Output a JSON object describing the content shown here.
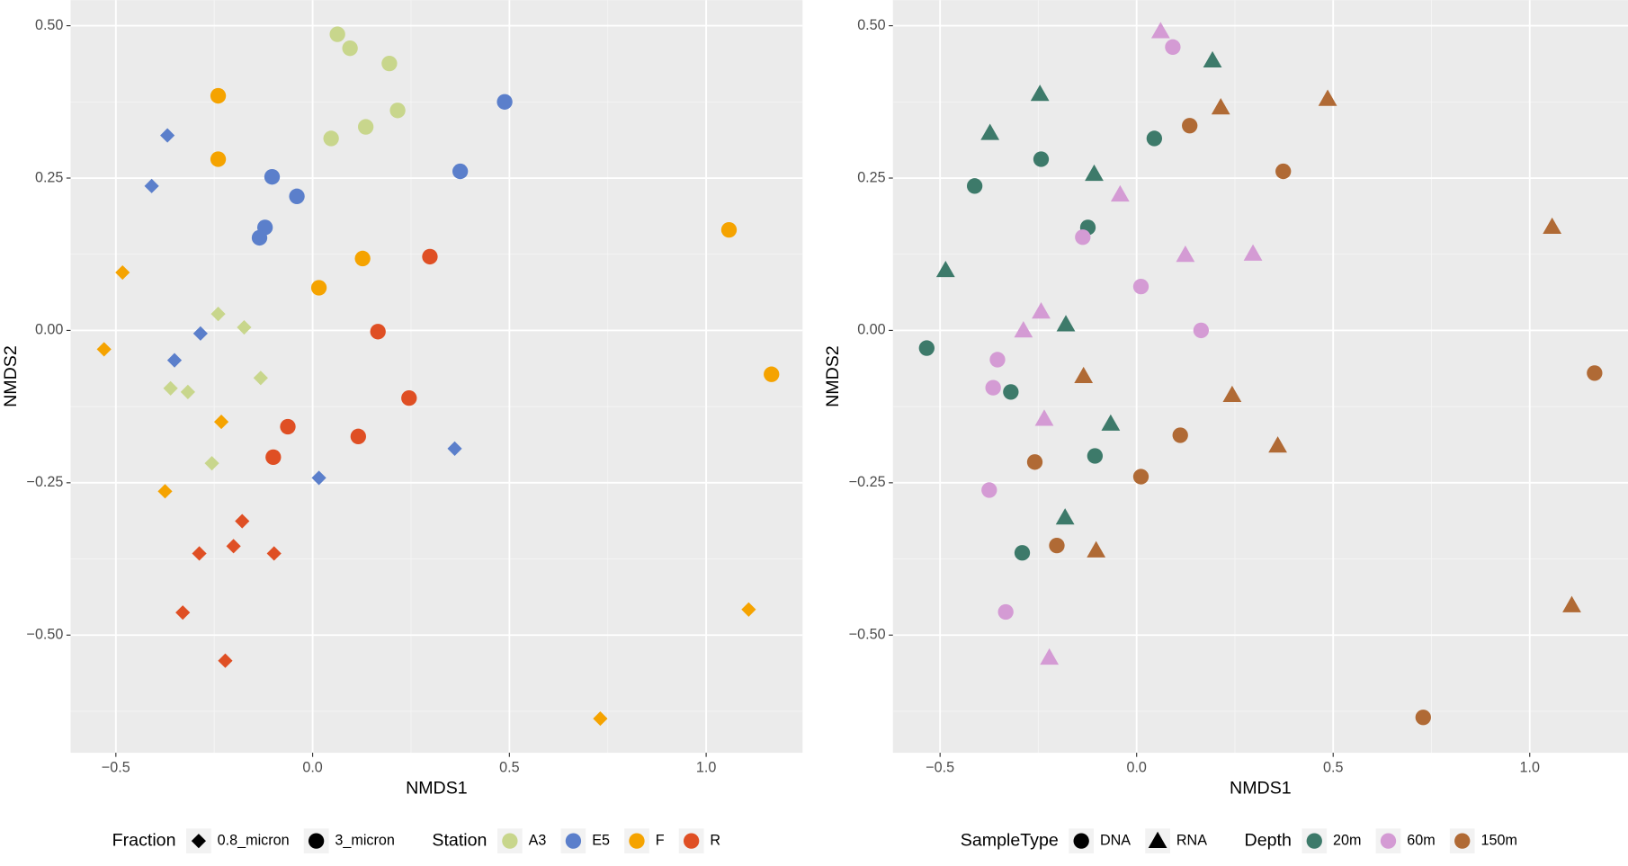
{
  "chart_data": [
    {
      "type": "scatter",
      "xlabel": "NMDS1",
      "ylabel": "NMDS2",
      "xlim": [
        -0.615,
        1.245
      ],
      "ylim": [
        -0.693,
        0.542
      ],
      "xticks": [
        {
          "value": -0.5,
          "label": "−0.5"
        },
        {
          "value": 0,
          "label": "0.0"
        },
        0.5,
        {
          "value": 1,
          "label": "1.0"
        }
      ],
      "yticks": [
        {
          "value": 0.5,
          "label": "0.50"
        },
        0.25,
        {
          "value": 0,
          "label": "0.00"
        },
        {
          "value": -0.25,
          "label": "−0.25"
        },
        {
          "value": -0.5,
          "label": "−0.50"
        }
      ],
      "grid": true,
      "legends": [
        {
          "title": "Fraction",
          "entries": [
            {
              "label": "0.8_micron",
              "shape": "diamond"
            },
            {
              "label": "3_micron",
              "shape": "circle"
            }
          ]
        },
        {
          "title": "Station",
          "entries": [
            {
              "label": "A3",
              "color": "#c8d68c"
            },
            {
              "label": "E5",
              "color": "#5b7fcb"
            },
            {
              "label": "F",
              "color": "#f5a300"
            },
            {
              "label": "R",
              "color": "#df4f24"
            }
          ]
        }
      ],
      "series": [
        {
          "color": "#c8d68c",
          "shape": "circle",
          "x": [
            0.063,
            0.095,
            0.195,
            0.216,
            0.047,
            0.135
          ],
          "y": [
            0.486,
            0.463,
            0.438,
            0.361,
            0.315,
            0.334
          ]
        },
        {
          "color": "#c8d68c",
          "shape": "diamond",
          "x": [
            -0.24,
            -0.174,
            -0.132,
            -0.361,
            -0.317,
            -0.256
          ],
          "y": [
            0.027,
            0.005,
            -0.078,
            -0.095,
            -0.101,
            -0.218
          ]
        },
        {
          "color": "#5b7fcb",
          "shape": "circle",
          "x": [
            0.488,
            0.375,
            -0.103,
            -0.04,
            -0.121,
            -0.135
          ],
          "y": [
            0.375,
            0.261,
            0.252,
            0.22,
            0.169,
            0.152
          ]
        },
        {
          "color": "#5b7fcb",
          "shape": "diamond",
          "x": [
            -0.369,
            -0.409,
            -0.285,
            -0.351,
            0.361,
            0.016
          ],
          "y": [
            0.32,
            0.237,
            -0.005,
            -0.049,
            -0.194,
            -0.242
          ]
        },
        {
          "color": "#f5a300",
          "shape": "circle",
          "x": [
            -0.24,
            -0.24,
            1.058,
            0.127,
            0.016,
            1.166
          ],
          "y": [
            0.385,
            0.281,
            0.165,
            0.118,
            0.07,
            -0.072
          ]
        },
        {
          "color": "#f5a300",
          "shape": "diamond",
          "x": [
            -0.483,
            -0.53,
            -0.232,
            -0.375,
            1.108,
            0.731
          ],
          "y": [
            0.095,
            -0.031,
            -0.15,
            -0.264,
            -0.458,
            -0.637
          ]
        },
        {
          "color": "#df4f24",
          "shape": "circle",
          "x": [
            0.298,
            0.166,
            0.245,
            -0.063,
            0.116,
            -0.1
          ],
          "y": [
            0.121,
            -0.002,
            -0.111,
            -0.158,
            -0.174,
            -0.208
          ]
        },
        {
          "color": "#df4f24",
          "shape": "diamond",
          "x": [
            -0.179,
            -0.201,
            -0.288,
            -0.098,
            -0.33,
            -0.222
          ],
          "y": [
            -0.313,
            -0.354,
            -0.366,
            -0.366,
            -0.463,
            -0.542
          ]
        }
      ]
    },
    {
      "type": "scatter",
      "xlabel": "NMDS1",
      "ylabel": "NMDS2",
      "xlim": [
        -0.62,
        1.25
      ],
      "ylim": [
        -0.693,
        0.542
      ],
      "xticks": [
        {
          "value": -0.5,
          "label": "−0.5"
        },
        {
          "value": 0,
          "label": "0.0"
        },
        0.5,
        {
          "value": 1,
          "label": "1.0"
        }
      ],
      "yticks": [
        {
          "value": 0.5,
          "label": "0.50"
        },
        0.25,
        {
          "value": 0,
          "label": "0.00"
        },
        {
          "value": -0.25,
          "label": "−0.25"
        },
        {
          "value": -0.5,
          "label": "−0.50"
        }
      ],
      "grid": true,
      "legends": [
        {
          "title": "SampleType",
          "entries": [
            {
              "label": "DNA",
              "shape": "circle"
            },
            {
              "label": "RNA",
              "shape": "triangle"
            }
          ]
        },
        {
          "title": "Depth",
          "entries": [
            {
              "label": "20m",
              "color": "#3d7a6a"
            },
            {
              "label": "60m",
              "color": "#d49bd4"
            },
            {
              "label": "150m",
              "color": "#b06a35"
            }
          ]
        }
      ],
      "series": [
        {
          "color": "#3d7a6a",
          "shape": "circle",
          "x": [
            0.045,
            -0.243,
            -0.412,
            -0.124,
            -0.534,
            -0.32,
            -0.106,
            -0.291
          ],
          "y": [
            0.315,
            0.281,
            0.237,
            0.169,
            -0.029,
            -0.101,
            -0.206,
            -0.365
          ]
        },
        {
          "color": "#3d7a6a",
          "shape": "triangle",
          "x": [
            0.193,
            -0.246,
            -0.373,
            -0.108,
            -0.486,
            -0.18,
            -0.066,
            -0.182
          ],
          "y": [
            0.443,
            0.388,
            0.324,
            0.257,
            0.099,
            0.01,
            -0.153,
            -0.307
          ]
        },
        {
          "color": "#d49bd4",
          "shape": "circle",
          "x": [
            0.092,
            -0.137,
            0.011,
            0.164,
            -0.354,
            -0.365,
            -0.375,
            -0.333
          ],
          "y": [
            0.465,
            0.153,
            0.072,
            0.0,
            -0.048,
            -0.094,
            -0.262,
            -0.462
          ]
        },
        {
          "color": "#d49bd4",
          "shape": "triangle",
          "x": [
            0.061,
            -0.042,
            0.124,
            0.296,
            -0.243,
            -0.288,
            -0.235,
            -0.222
          ],
          "y": [
            0.491,
            0.223,
            0.124,
            0.126,
            0.031,
            0.0,
            -0.145,
            -0.537
          ]
        },
        {
          "color": "#b06a35",
          "shape": "circle",
          "x": [
            0.135,
            0.373,
            1.165,
            0.111,
            -0.259,
            0.011,
            -0.203,
            0.729
          ],
          "y": [
            0.336,
            0.261,
            -0.07,
            -0.172,
            -0.216,
            -0.24,
            -0.353,
            -0.635
          ]
        },
        {
          "color": "#b06a35",
          "shape": "triangle",
          "x": [
            0.214,
            0.486,
            1.057,
            -0.135,
            0.243,
            0.359,
            -0.103,
            1.107
          ],
          "y": [
            0.366,
            0.38,
            0.17,
            -0.075,
            -0.106,
            -0.189,
            -0.361,
            -0.451
          ]
        }
      ]
    }
  ]
}
